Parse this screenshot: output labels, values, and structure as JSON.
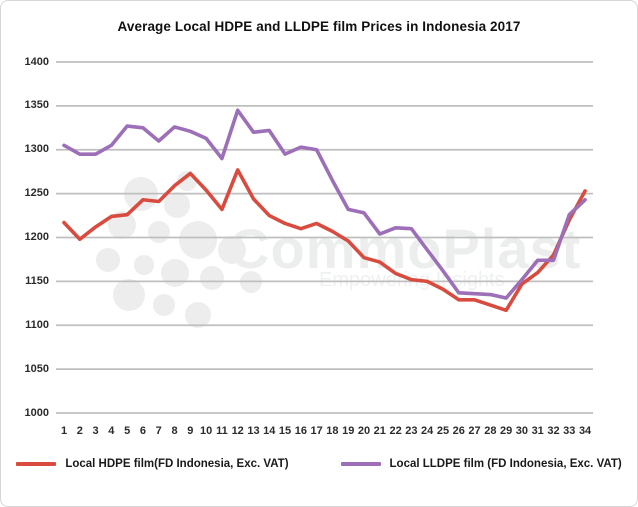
{
  "title": "Average Local HDPE and LLDPE film Prices in Indonesia 2017",
  "watermark": {
    "name": "CommoPlast",
    "tagline": "Empowering Insights"
  },
  "legend": {
    "hdpe_label": "Local HDPE film(FD Indonesia, Exc. VAT)",
    "lldpe_label": "Local LLDPE film (FD Indonesia, Exc. VAT)"
  },
  "colors": {
    "hdpe_red": "#d94b3f",
    "lldpe_purple": "#9c6fb8",
    "gridline": "#bfbfbf",
    "axis_text": "#2b2b2b",
    "border": "#d6d6d6",
    "watermark": "#ededee"
  },
  "chart_data": {
    "type": "line",
    "title": "Average Local HDPE and LLDPE film Prices in Indonesia 2017",
    "xlabel": "",
    "ylabel": "",
    "x": [
      1,
      2,
      3,
      4,
      5,
      6,
      7,
      8,
      9,
      10,
      11,
      12,
      13,
      14,
      15,
      16,
      17,
      18,
      19,
      20,
      21,
      22,
      23,
      24,
      25,
      26,
      27,
      28,
      29,
      30,
      31,
      32,
      33,
      34
    ],
    "series": [
      {
        "name": "Local HDPE film(FD Indonesia, Exc. VAT)",
        "color": "#d94b3f",
        "values": [
          1217,
          1198,
          1212,
          1224,
          1226,
          1243,
          1241,
          1259,
          1273,
          1254,
          1232,
          1277,
          1244,
          1225,
          1216,
          1210,
          1216,
          1207,
          1196,
          1177,
          1172,
          1159,
          1152,
          1150,
          1141,
          1129,
          1129,
          1123,
          1117,
          1147,
          1160,
          1180,
          1220,
          1253
        ]
      },
      {
        "name": "Local LLDPE film (FD Indonesia, Exc. VAT)",
        "color": "#9c6fb8",
        "values": [
          1305,
          1295,
          1295,
          1305,
          1327,
          1325,
          1310,
          1326,
          1321,
          1313,
          1290,
          1345,
          1320,
          1322,
          1295,
          1303,
          1300,
          1265,
          1232,
          1228,
          1204,
          1211,
          1210,
          1186,
          1162,
          1137,
          1136,
          1135,
          1131,
          1152,
          1174,
          1174,
          1226,
          1243
        ]
      }
    ],
    "ylim": [
      1000,
      1400
    ],
    "y_ticks": [
      1000,
      1050,
      1100,
      1150,
      1200,
      1250,
      1300,
      1350,
      1400
    ],
    "grid": true,
    "legend_position": "bottom"
  }
}
